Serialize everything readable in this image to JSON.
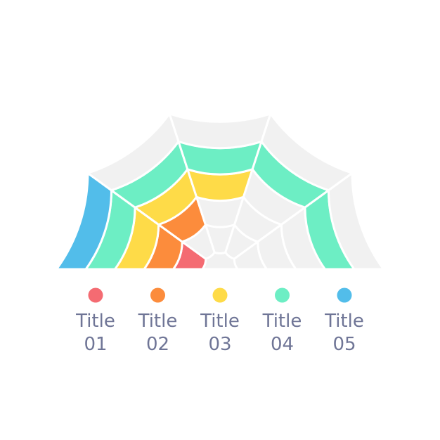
{
  "chart_data": {
    "type": "radial-bar",
    "layout": "semicircle",
    "segments_per_ring": 5,
    "track_color": "#f1f1f1",
    "series": [
      {
        "name": "Title 01",
        "color": "#f46b72",
        "filled_segments": 1
      },
      {
        "name": "Title 02",
        "color": "#fc8c3c",
        "filled_segments": 2
      },
      {
        "name": "Title 03",
        "color": "#fedb48",
        "filled_segments": 3
      },
      {
        "name": "Title 04",
        "color": "#6deec4",
        "filled_segments": 5
      },
      {
        "name": "Title 05",
        "color": "#52bdea",
        "filled_segments": 1
      }
    ],
    "legend": [
      {
        "line1": "Title",
        "line2": "01",
        "color": "#f46b72"
      },
      {
        "line1": "Title",
        "line2": "02",
        "color": "#fc8c3c"
      },
      {
        "line1": "Title",
        "line2": "03",
        "color": "#fedb48"
      },
      {
        "line1": "Title",
        "line2": "04",
        "color": "#6deec4"
      },
      {
        "line1": "Title",
        "line2": "05",
        "color": "#52bdea"
      }
    ]
  }
}
